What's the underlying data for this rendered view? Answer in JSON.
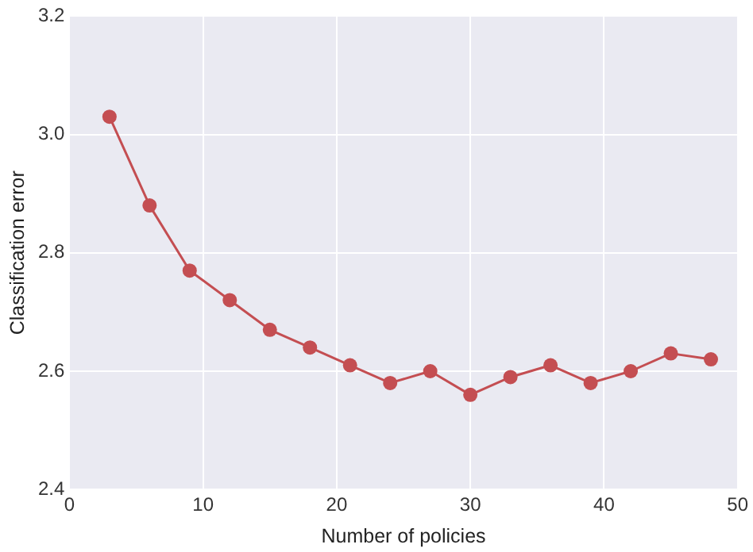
{
  "chart_data": {
    "type": "line",
    "xlabel": "Number of policies",
    "ylabel": "Classification error",
    "x": [
      3,
      6,
      9,
      12,
      15,
      18,
      21,
      24,
      27,
      30,
      33,
      36,
      39,
      42,
      45,
      48
    ],
    "series": [
      {
        "color": "#c44e52",
        "values": [
          3.03,
          2.88,
          2.77,
          2.72,
          2.67,
          2.64,
          2.61,
          2.58,
          2.6,
          2.56,
          2.59,
          2.61,
          2.58,
          2.6,
          2.63,
          2.62
        ]
      }
    ],
    "xlim": [
      0,
      50
    ],
    "xticks": [
      0,
      10,
      20,
      30,
      40,
      50
    ],
    "ylim": [
      2.4,
      3.2
    ],
    "yticks": [
      {
        "value": 2.4,
        "label": "2.4"
      },
      {
        "value": 2.6,
        "label": "2.6"
      },
      {
        "value": 2.8,
        "label": "2.8"
      },
      {
        "value": 3.0,
        "label": "3.0"
      },
      {
        "value": 3.2,
        "label": "3.2"
      }
    ],
    "grid": true,
    "marker": "circle",
    "line_style": "solid",
    "legend": false
  }
}
